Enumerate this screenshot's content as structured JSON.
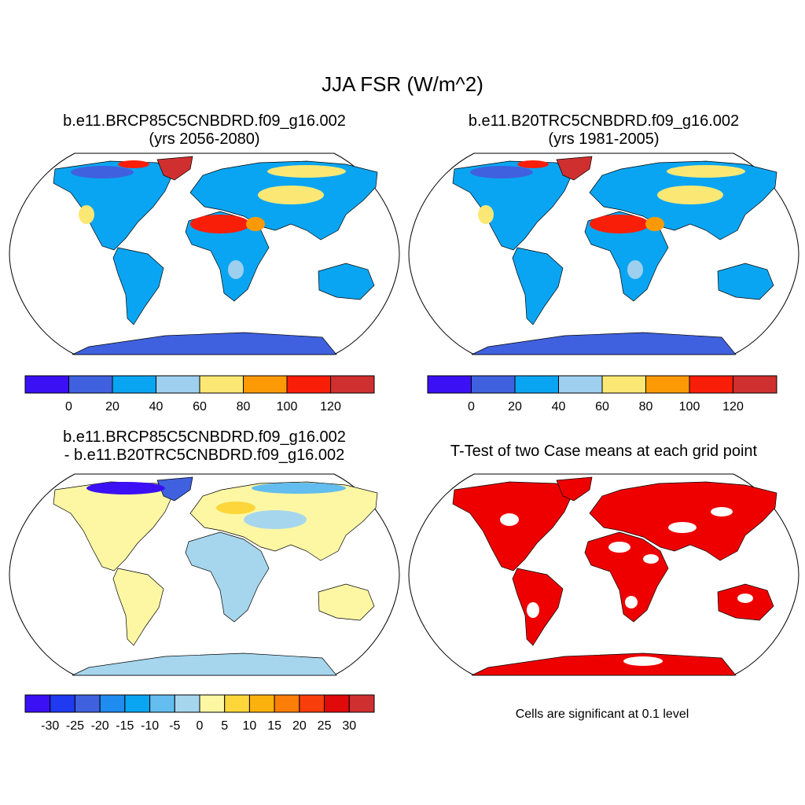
{
  "title": "JJA FSR (W/m^2)",
  "panels": [
    {
      "line1": "b.e11.BRCP85C5CNBDRD.f09_g16.002",
      "line2": "(yrs 2056-2080)"
    },
    {
      "line1": "b.e11.B20TRC5CNBDRD.f09_g16.002",
      "line2": "(yrs 1981-2005)"
    },
    {
      "line1": "b.e11.BRCP85C5CNBDRD.f09_g16.002",
      "line2": "- b.e11.B20TRC5CNBDRD.f09_g16.002"
    },
    {
      "line1": "T-Test of two Case means at each grid point"
    }
  ],
  "colorbars": {
    "absolute": {
      "colors": [
        "#3b10f5",
        "#3f61df",
        "#0aa5f2",
        "#9ecfee",
        "#fbe874",
        "#fc9a06",
        "#f91e08",
        "#d02f2f"
      ],
      "labels": [
        "0",
        "20",
        "40",
        "60",
        "80",
        "100",
        "120"
      ]
    },
    "difference": {
      "colors": [
        "#3b10f5",
        "#1f3af0",
        "#3f61df",
        "#1f8cf0",
        "#0aa5f2",
        "#63bdee",
        "#a6d6ee",
        "#fdf7a4",
        "#fcd63a",
        "#fcb20c",
        "#fc7d07",
        "#f93d0b",
        "#e00a0a",
        "#d02f2f"
      ],
      "labels": [
        "-30",
        "-25",
        "-20",
        "-15",
        "-10",
        "-5",
        "0",
        "5",
        "10",
        "15",
        "20",
        "25",
        "30"
      ]
    }
  },
  "significance_note": "Cells are significant at 0.1 level"
}
